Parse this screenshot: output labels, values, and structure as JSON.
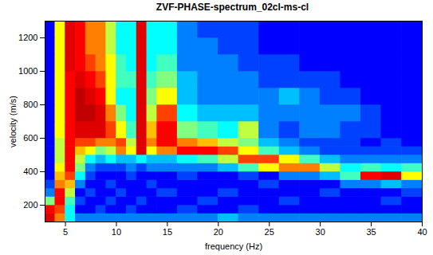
{
  "chart_data": {
    "type": "heatmap",
    "title": "ZVF-PHASE-spectrum_02cl-ms-cl",
    "xlabel": "frequency (Hz)",
    "ylabel": "velocity (m/s)",
    "xlim": [
      3,
      40
    ],
    "xticks": [
      5,
      10,
      15,
      20,
      25,
      30,
      35,
      40
    ],
    "ylim": [
      100,
      1300
    ],
    "yticks": [
      200,
      400,
      600,
      800,
      1000,
      1200
    ],
    "zlim": [
      0,
      1
    ],
    "x_bins": [
      3,
      4,
      5,
      6,
      7,
      8,
      9,
      10,
      11,
      12,
      13,
      14,
      16,
      18,
      20,
      22,
      24,
      26,
      28,
      30,
      32,
      34,
      36,
      38,
      40
    ],
    "y_bins": [
      100,
      150,
      200,
      250,
      300,
      350,
      400,
      450,
      500,
      550,
      600,
      700,
      800,
      900,
      1000,
      1100,
      1200,
      1300
    ],
    "values": [
      [
        0.85,
        0.7,
        0.4,
        0.3,
        0.3,
        0.3,
        0.3,
        0.3,
        0.3,
        0.3,
        0.3,
        0.3,
        0.3,
        0.3,
        0.35,
        0.3,
        0.3,
        0.3,
        0.3,
        0.3,
        0.3,
        0.3,
        0.3,
        0.3
      ],
      [
        0.8,
        0.75,
        0.4,
        0.2,
        0.2,
        0.25,
        0.2,
        0.2,
        0.25,
        0.2,
        0.2,
        0.2,
        0.25,
        0.2,
        0.2,
        0.25,
        0.2,
        0.2,
        0.2,
        0.2,
        0.2,
        0.2,
        0.2,
        0.2
      ],
      [
        0.5,
        0.8,
        0.45,
        0.25,
        0.2,
        0.2,
        0.25,
        0.2,
        0.2,
        0.25,
        0.2,
        0.2,
        0.2,
        0.25,
        0.2,
        0.2,
        0.2,
        0.25,
        0.2,
        0.2,
        0.2,
        0.2,
        0.25,
        0.2
      ],
      [
        0.3,
        0.8,
        0.55,
        0.2,
        0.25,
        0.2,
        0.2,
        0.25,
        0.2,
        0.2,
        0.2,
        0.25,
        0.2,
        0.2,
        0.25,
        0.2,
        0.2,
        0.2,
        0.2,
        0.25,
        0.2,
        0.2,
        0.2,
        0.25
      ],
      [
        0.25,
        0.7,
        0.65,
        0.3,
        0.2,
        0.2,
        0.25,
        0.2,
        0.2,
        0.2,
        0.25,
        0.2,
        0.2,
        0.2,
        0.2,
        0.2,
        0.25,
        0.2,
        0.2,
        0.2,
        0.3,
        0.3,
        0.35,
        0.3
      ],
      [
        0.2,
        0.65,
        0.75,
        0.4,
        0.25,
        0.2,
        0.2,
        0.2,
        0.25,
        0.2,
        0.2,
        0.2,
        0.25,
        0.2,
        0.2,
        0.25,
        0.2,
        0.3,
        0.3,
        0.35,
        0.45,
        0.8,
        0.85,
        0.6
      ],
      [
        0.2,
        0.6,
        0.8,
        0.5,
        0.3,
        0.25,
        0.25,
        0.25,
        0.3,
        0.25,
        0.3,
        0.3,
        0.3,
        0.3,
        0.35,
        0.45,
        0.6,
        0.7,
        0.7,
        0.55,
        0.4,
        0.45,
        0.4,
        0.45
      ],
      [
        0.2,
        0.55,
        0.8,
        0.55,
        0.4,
        0.35,
        0.4,
        0.35,
        0.35,
        0.4,
        0.35,
        0.35,
        0.4,
        0.45,
        0.55,
        0.75,
        0.75,
        0.6,
        0.45,
        0.35,
        0.3,
        0.3,
        0.3,
        0.3
      ],
      [
        0.2,
        0.55,
        0.8,
        0.65,
        0.6,
        0.5,
        0.55,
        0.7,
        0.6,
        0.85,
        0.6,
        0.7,
        0.8,
        0.8,
        0.75,
        0.6,
        0.45,
        0.35,
        0.3,
        0.25,
        0.25,
        0.25,
        0.25,
        0.25
      ],
      [
        0.2,
        0.55,
        0.8,
        0.75,
        0.75,
        0.7,
        0.7,
        0.75,
        0.55,
        0.85,
        0.7,
        0.8,
        0.7,
        0.65,
        0.55,
        0.5,
        0.35,
        0.3,
        0.25,
        0.25,
        0.25,
        0.2,
        0.25,
        0.2
      ],
      [
        0.2,
        0.6,
        0.8,
        0.85,
        0.85,
        0.85,
        0.75,
        0.6,
        0.45,
        0.85,
        0.65,
        0.8,
        0.5,
        0.45,
        0.4,
        0.55,
        0.3,
        0.25,
        0.3,
        0.3,
        0.25,
        0.25,
        0.2,
        0.2
      ],
      [
        0.2,
        0.6,
        0.8,
        0.9,
        0.9,
        0.85,
        0.7,
        0.5,
        0.4,
        0.85,
        0.55,
        0.75,
        0.4,
        0.35,
        0.35,
        0.35,
        0.3,
        0.3,
        0.3,
        0.3,
        0.3,
        0.25,
        0.2,
        0.2
      ],
      [
        0.2,
        0.6,
        0.8,
        0.9,
        0.85,
        0.8,
        0.6,
        0.4,
        0.4,
        0.85,
        0.5,
        0.6,
        0.35,
        0.3,
        0.3,
        0.3,
        0.3,
        0.35,
        0.3,
        0.25,
        0.25,
        0.2,
        0.2,
        0.2
      ],
      [
        0.2,
        0.6,
        0.8,
        0.85,
        0.8,
        0.75,
        0.6,
        0.45,
        0.45,
        0.85,
        0.45,
        0.5,
        0.35,
        0.3,
        0.3,
        0.3,
        0.25,
        0.25,
        0.25,
        0.25,
        0.2,
        0.2,
        0.2,
        0.2
      ],
      [
        0.2,
        0.6,
        0.85,
        0.8,
        0.75,
        0.7,
        0.6,
        0.45,
        0.4,
        0.85,
        0.4,
        0.45,
        0.3,
        0.3,
        0.3,
        0.25,
        0.25,
        0.25,
        0.2,
        0.2,
        0.2,
        0.2,
        0.2,
        0.2
      ],
      [
        0.2,
        0.6,
        0.85,
        0.8,
        0.7,
        0.7,
        0.55,
        0.4,
        0.4,
        0.85,
        0.4,
        0.4,
        0.3,
        0.3,
        0.25,
        0.25,
        0.2,
        0.2,
        0.2,
        0.2,
        0.2,
        0.2,
        0.2,
        0.2
      ],
      [
        0.2,
        0.6,
        0.85,
        0.8,
        0.7,
        0.7,
        0.55,
        0.4,
        0.4,
        0.85,
        0.4,
        0.4,
        0.3,
        0.25,
        0.25,
        0.25,
        0.2,
        0.2,
        0.2,
        0.2,
        0.2,
        0.2,
        0.2,
        0.2
      ]
    ]
  }
}
